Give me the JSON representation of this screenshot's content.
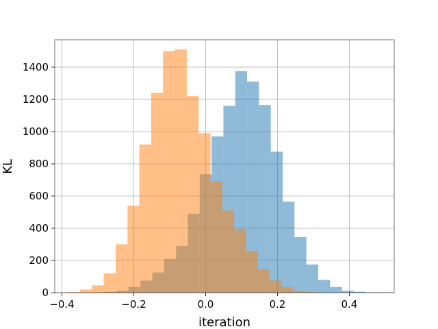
{
  "chart_data": {
    "type": "bar",
    "title": "",
    "xlabel": "iteration",
    "ylabel": "KL",
    "xlim": [
      -0.42,
      0.525
    ],
    "ylim": [
      0,
      1570
    ],
    "xticks": [
      -0.4,
      -0.2,
      0.0,
      0.2,
      0.4
    ],
    "xtick_labels": [
      "−0.4",
      "−0.2",
      "0.0",
      "0.2",
      "0.4"
    ],
    "yticks": [
      0,
      200,
      400,
      600,
      800,
      1000,
      1200,
      1400
    ],
    "ytick_labels": [
      "0",
      "200",
      "400",
      "600",
      "800",
      "1000",
      "1200",
      "1400"
    ],
    "grid": true,
    "legend": "none",
    "series": [
      {
        "color": "#1f77b4",
        "opacity": 0.5,
        "bins": [
          {
            "x0": -0.3135,
            "x1": -0.2805,
            "y": 2
          },
          {
            "x0": -0.2805,
            "x1": -0.2475,
            "y": 5
          },
          {
            "x0": -0.2475,
            "x1": -0.2145,
            "y": 12
          },
          {
            "x0": -0.2145,
            "x1": -0.1815,
            "y": 35
          },
          {
            "x0": -0.1815,
            "x1": -0.1485,
            "y": 75
          },
          {
            "x0": -0.1485,
            "x1": -0.1155,
            "y": 125
          },
          {
            "x0": -0.1155,
            "x1": -0.0825,
            "y": 210
          },
          {
            "x0": -0.0825,
            "x1": -0.0495,
            "y": 290
          },
          {
            "x0": -0.0495,
            "x1": -0.0165,
            "y": 490
          },
          {
            "x0": -0.0165,
            "x1": 0.0165,
            "y": 735
          },
          {
            "x0": 0.0165,
            "x1": 0.0495,
            "y": 970
          },
          {
            "x0": 0.0495,
            "x1": 0.0825,
            "y": 1160
          },
          {
            "x0": 0.0825,
            "x1": 0.1155,
            "y": 1375
          },
          {
            "x0": 0.1155,
            "x1": 0.1485,
            "y": 1310
          },
          {
            "x0": 0.1485,
            "x1": 0.1815,
            "y": 1165
          },
          {
            "x0": 0.1815,
            "x1": 0.2145,
            "y": 875
          },
          {
            "x0": 0.2145,
            "x1": 0.2475,
            "y": 565
          },
          {
            "x0": 0.2475,
            "x1": 0.2805,
            "y": 345
          },
          {
            "x0": 0.2805,
            "x1": 0.3135,
            "y": 175
          },
          {
            "x0": 0.3135,
            "x1": 0.3465,
            "y": 80
          },
          {
            "x0": 0.3465,
            "x1": 0.3795,
            "y": 35
          },
          {
            "x0": 0.3795,
            "x1": 0.4125,
            "y": 12
          },
          {
            "x0": 0.4125,
            "x1": 0.4455,
            "y": 6
          },
          {
            "x0": 0.4455,
            "x1": 0.4785,
            "y": 2
          },
          {
            "x0": 0.4785,
            "x1": 0.5115,
            "y": 1
          }
        ]
      },
      {
        "color": "#ff7f0e",
        "opacity": 0.5,
        "bins": [
          {
            "x0": -0.3825,
            "x1": -0.3495,
            "y": 4
          },
          {
            "x0": -0.3495,
            "x1": -0.3165,
            "y": 20
          },
          {
            "x0": -0.3165,
            "x1": -0.2835,
            "y": 45
          },
          {
            "x0": -0.2835,
            "x1": -0.2505,
            "y": 120
          },
          {
            "x0": -0.2505,
            "x1": -0.2175,
            "y": 300
          },
          {
            "x0": -0.2175,
            "x1": -0.1845,
            "y": 540
          },
          {
            "x0": -0.1845,
            "x1": -0.1515,
            "y": 920
          },
          {
            "x0": -0.1515,
            "x1": -0.1185,
            "y": 1240
          },
          {
            "x0": -0.1185,
            "x1": -0.0855,
            "y": 1500
          },
          {
            "x0": -0.0855,
            "x1": -0.0525,
            "y": 1510
          },
          {
            "x0": -0.0525,
            "x1": -0.0195,
            "y": 1220
          },
          {
            "x0": -0.0195,
            "x1": 0.0135,
            "y": 990
          },
          {
            "x0": 0.0135,
            "x1": 0.0465,
            "y": 690
          },
          {
            "x0": 0.0465,
            "x1": 0.0795,
            "y": 510
          },
          {
            "x0": 0.0795,
            "x1": 0.1125,
            "y": 395
          },
          {
            "x0": 0.1125,
            "x1": 0.1455,
            "y": 260
          },
          {
            "x0": 0.1455,
            "x1": 0.1785,
            "y": 145
          },
          {
            "x0": 0.1785,
            "x1": 0.2115,
            "y": 75
          },
          {
            "x0": 0.2115,
            "x1": 0.2445,
            "y": 35
          },
          {
            "x0": 0.2445,
            "x1": 0.2775,
            "y": 12
          },
          {
            "x0": 0.2775,
            "x1": 0.3105,
            "y": 4
          },
          {
            "x0": 0.3105,
            "x1": 0.3435,
            "y": 1
          }
        ]
      }
    ]
  }
}
